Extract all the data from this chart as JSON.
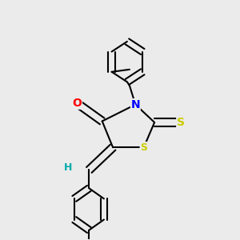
{
  "background_color": "#ebebeb",
  "atom_colors": {
    "C": "#000000",
    "N": "#0000ff",
    "O": "#ff0000",
    "S": "#cccc00",
    "H": "#00aaaa"
  },
  "bond_color": "#000000",
  "bond_width": 1.5,
  "font_size_atoms": 10,
  "font_size_h": 9,
  "font_size_s": 9
}
